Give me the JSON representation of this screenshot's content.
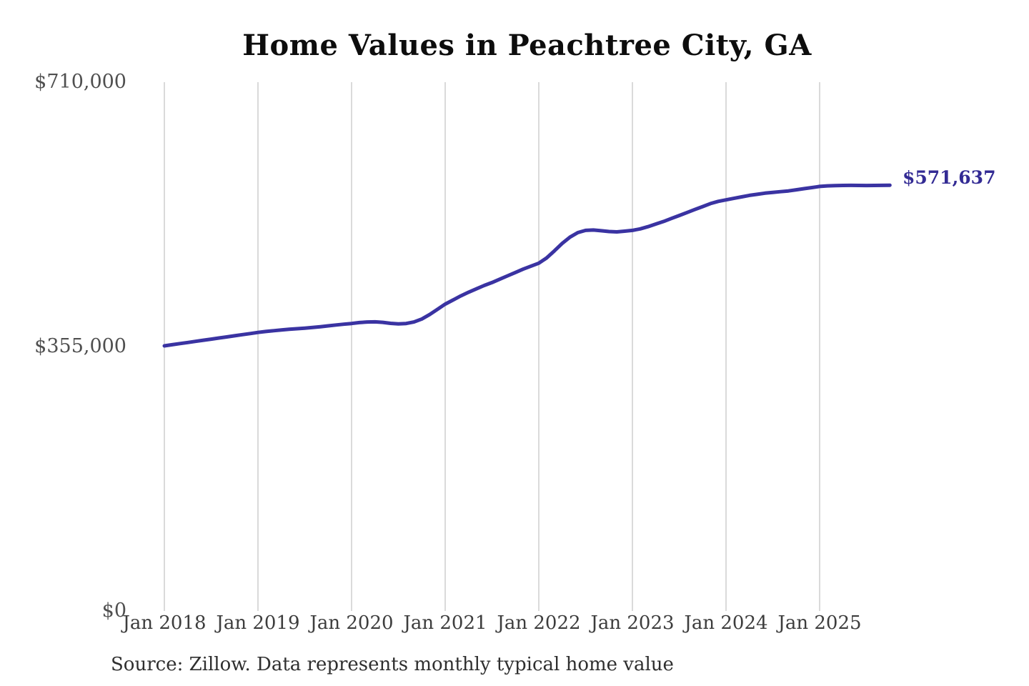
{
  "title": "Home Values in Peachtree City, GA",
  "source": "Source: Zillow. Data represents monthly typical home value",
  "end_label": "$571,637",
  "colors": {
    "line": "#3a33a2",
    "end_label": "#332b94",
    "grid": "#cdcdcd",
    "x_axis_text": "#3d3d3d",
    "y_axis_text": "#4f4f4f",
    "title_text": "#0d0d0d",
    "source_text": "#2f2f2f",
    "background": "#ffffff"
  },
  "y_axis": {
    "max": 710000,
    "ticks": [
      {
        "label": "$0",
        "value": 0
      },
      {
        "label": "$355,000",
        "value": 355000
      },
      {
        "label": "$710,000",
        "value": 710000
      }
    ]
  },
  "x_axis": {
    "ticks": [
      {
        "label": "Jan 2018",
        "month": 0
      },
      {
        "label": "Jan 2019",
        "month": 12
      },
      {
        "label": "Jan 2020",
        "month": 24
      },
      {
        "label": "Jan 2021",
        "month": 36
      },
      {
        "label": "Jan 2022",
        "month": 48
      },
      {
        "label": "Jan 2023",
        "month": 60
      },
      {
        "label": "Jan 2024",
        "month": 72
      },
      {
        "label": "Jan 2025",
        "month": 84
      }
    ]
  },
  "chart_data": {
    "type": "line",
    "title": "Home Values in Peachtree City, GA",
    "xlabel": "",
    "ylabel": "",
    "ylim": [
      0,
      710000
    ],
    "grid": "vertical-only",
    "legend": "none",
    "series_name": "Monthly typical home value",
    "final_value": 571637,
    "final_value_label": "$571,637",
    "x": [
      "2018-01",
      "2018-02",
      "2018-03",
      "2018-04",
      "2018-05",
      "2018-06",
      "2018-07",
      "2018-08",
      "2018-09",
      "2018-10",
      "2018-11",
      "2018-12",
      "2019-01",
      "2019-02",
      "2019-03",
      "2019-04",
      "2019-05",
      "2019-06",
      "2019-07",
      "2019-08",
      "2019-09",
      "2019-10",
      "2019-11",
      "2019-12",
      "2020-01",
      "2020-02",
      "2020-03",
      "2020-04",
      "2020-05",
      "2020-06",
      "2020-07",
      "2020-08",
      "2020-09",
      "2020-10",
      "2020-11",
      "2020-12",
      "2021-01",
      "2021-02",
      "2021-03",
      "2021-04",
      "2021-05",
      "2021-06",
      "2021-07",
      "2021-08",
      "2021-09",
      "2021-10",
      "2021-11",
      "2021-12",
      "2022-01",
      "2022-02",
      "2022-03",
      "2022-04",
      "2022-05",
      "2022-06",
      "2022-07",
      "2022-08",
      "2022-09",
      "2022-10",
      "2022-11",
      "2022-12",
      "2023-01",
      "2023-02",
      "2023-03",
      "2023-04",
      "2023-05",
      "2023-06",
      "2023-07",
      "2023-08",
      "2023-09",
      "2023-10",
      "2023-11",
      "2023-12",
      "2024-01",
      "2024-02",
      "2024-03",
      "2024-04",
      "2024-05",
      "2024-06",
      "2024-07",
      "2024-08",
      "2024-09",
      "2024-10",
      "2024-11",
      "2024-12",
      "2025-01",
      "2025-02",
      "2025-03",
      "2025-04",
      "2025-05",
      "2025-06",
      "2025-07",
      "2025-08",
      "2025-09",
      "2025-10"
    ],
    "values": [
      356000,
      357500,
      359000,
      360500,
      362000,
      363500,
      365000,
      366500,
      368000,
      369500,
      371000,
      372500,
      374000,
      375200,
      376300,
      377300,
      378200,
      379000,
      379800,
      380700,
      381700,
      382800,
      384000,
      385000,
      386000,
      387200,
      388000,
      388200,
      387500,
      386200,
      385500,
      386000,
      388000,
      392000,
      398000,
      405000,
      412000,
      417500,
      423000,
      428000,
      432500,
      437000,
      441000,
      445500,
      450000,
      454500,
      459000,
      463000,
      467000,
      474000,
      483500,
      493500,
      502000,
      508000,
      511000,
      511500,
      510500,
      509500,
      509000,
      510000,
      511000,
      513000,
      516000,
      519500,
      523000,
      527000,
      531000,
      535000,
      539000,
      543000,
      547000,
      550000,
      552000,
      554000,
      556000,
      558000,
      559500,
      561000,
      562000,
      563000,
      564000,
      565500,
      567000,
      568500,
      570000,
      570800,
      571200,
      571400,
      571500,
      571400,
      571300,
      571400,
      571500,
      571637
    ]
  }
}
